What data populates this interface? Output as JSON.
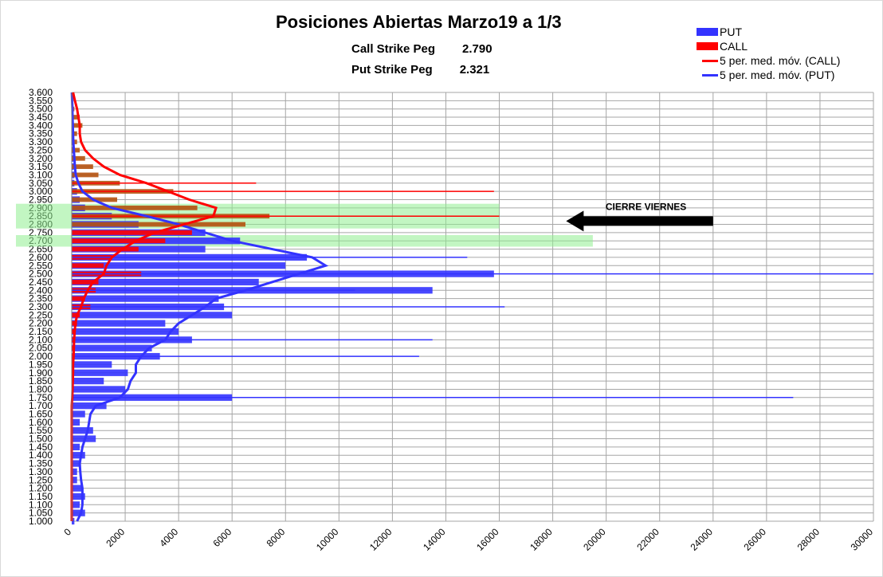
{
  "chart_data": {
    "type": "bar",
    "orientation": "horizontal",
    "title": "Posiciones Abiertas Marzo19 a 1/3",
    "subtitles": [
      {
        "label": "Call Strike Peg",
        "value": "2.790"
      },
      {
        "label": "Put Strike Peg",
        "value": "2.321"
      }
    ],
    "legend_placement": "top-right",
    "legend": [
      "PUT",
      "CALL",
      "5 per. med. móv. (CALL)",
      "5 per. med. móv. (PUT)"
    ],
    "colors": {
      "put": "#3333ff",
      "call": "#ff0000",
      "ma_call": "#ff0000",
      "ma_put": "#3333ff",
      "highlight": "#90ee90",
      "overlap": "#b5520f"
    },
    "xlim": [
      0,
      30000
    ],
    "ylim": [
      1.0,
      3.6
    ],
    "grid": true,
    "x_ticks": [
      "0",
      "2000",
      "4000",
      "6000",
      "8000",
      "10000",
      "12000",
      "14000",
      "16000",
      "18000",
      "20000",
      "22000",
      "24000",
      "26000",
      "28000",
      "30000"
    ],
    "strikes": [
      "1.000",
      "1.050",
      "1.100",
      "1.150",
      "1.200",
      "1.250",
      "1.300",
      "1.350",
      "1.400",
      "1.450",
      "1.500",
      "1.550",
      "1.600",
      "1.650",
      "1.700",
      "1.750",
      "1.800",
      "1.850",
      "1.900",
      "1.950",
      "2.000",
      "2.050",
      "2.100",
      "2.150",
      "2.200",
      "2.250",
      "2.300",
      "2.350",
      "2.400",
      "2.450",
      "2.500",
      "2.550",
      "2.600",
      "2.650",
      "2.700",
      "2.750",
      "2.800",
      "2.850",
      "2.900",
      "2.950",
      "3.000",
      "3.050",
      "3.100",
      "3.150",
      "3.200",
      "3.250",
      "3.300",
      "3.350",
      "3.400",
      "3.450",
      "3.500",
      "3.550",
      "3.600"
    ],
    "series": [
      {
        "name": "PUT",
        "values": [
          100,
          500,
          300,
          500,
          400,
          200,
          200,
          300,
          500,
          300,
          900,
          800,
          300,
          500,
          1300,
          6000,
          2000,
          1200,
          2100,
          1500,
          3300,
          3000,
          4500,
          4000,
          3500,
          6000,
          5700,
          5500,
          13500,
          7000,
          15800,
          8000,
          8800,
          5000,
          6300,
          5000,
          2500,
          1500,
          500,
          300,
          200,
          100,
          100,
          80,
          60,
          50,
          40,
          30,
          30,
          20,
          20,
          10,
          0
        ]
      },
      {
        "name": "CALL",
        "values": [
          0,
          0,
          0,
          0,
          0,
          0,
          0,
          0,
          0,
          0,
          0,
          0,
          0,
          0,
          0,
          50,
          50,
          50,
          50,
          50,
          100,
          100,
          100,
          150,
          200,
          300,
          700,
          500,
          900,
          1000,
          2600,
          1200,
          1500,
          2500,
          3500,
          4500,
          6500,
          7400,
          4700,
          1700,
          3800,
          1800,
          1000,
          800,
          500,
          300,
          200,
          200,
          400,
          300,
          100,
          50,
          0
        ]
      },
      {
        "name": "5 per. med. móv. (CALL)",
        "values": [
          0,
          0,
          0,
          0,
          0,
          0,
          0,
          0,
          0,
          0,
          0,
          0,
          0,
          0,
          0,
          20,
          30,
          40,
          50,
          50,
          70,
          80,
          90,
          110,
          140,
          200,
          350,
          450,
          600,
          800,
          1200,
          1300,
          1500,
          1900,
          2400,
          3100,
          4200,
          5300,
          5400,
          4400,
          3600,
          2800,
          1800,
          1200,
          800,
          500,
          350,
          300,
          300,
          250,
          200,
          120,
          50
        ]
      },
      {
        "name": "5 per. med. móv. (PUT)",
        "values": [
          200,
          350,
          400,
          400,
          400,
          350,
          320,
          300,
          350,
          400,
          500,
          600,
          650,
          700,
          900,
          1800,
          2100,
          2200,
          2400,
          2400,
          2600,
          2900,
          3500,
          3700,
          4000,
          4500,
          5000,
          5400,
          6500,
          7500,
          8500,
          9500,
          9000,
          7500,
          6000,
          5000,
          4000,
          2800,
          1500,
          800,
          400,
          250,
          150,
          120,
          100,
          80,
          60,
          50,
          40,
          30,
          25,
          15,
          5
        ]
      }
    ],
    "outliers_put": [
      [
        "2.500",
        30000
      ],
      [
        "1.750",
        27000
      ],
      [
        "2.300",
        16200
      ],
      [
        "2.600",
        14800
      ],
      [
        "2.400",
        10600
      ],
      [
        "2.100",
        13500
      ],
      [
        "2.000",
        13000
      ]
    ],
    "outliers_call": [
      [
        "3.000",
        15800
      ],
      [
        "2.850",
        16000
      ],
      [
        "3.050",
        6900
      ]
    ],
    "highlights": [
      {
        "from": "2.800",
        "to": "2.900",
        "x_to": 16000
      },
      {
        "from": "2.690",
        "to": "2.710",
        "x_to": 19500
      }
    ],
    "annotation": {
      "text": "CIERRE VIERNES",
      "strike": "2.820",
      "x_from": 18500,
      "x_to": 24000
    }
  }
}
